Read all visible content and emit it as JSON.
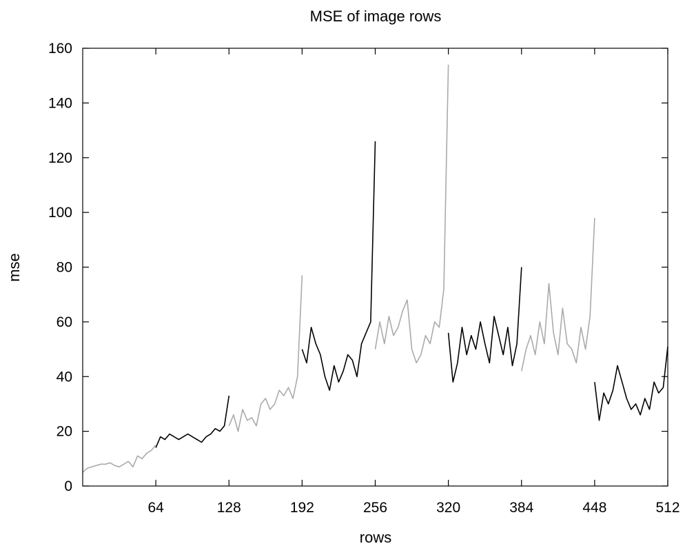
{
  "chart_data": {
    "type": "line",
    "title": "MSE of image rows",
    "xlabel": "rows",
    "ylabel": "mse",
    "xlim": [
      0,
      512
    ],
    "ylim": [
      0,
      160
    ],
    "xticks": [
      64,
      128,
      192,
      256,
      320,
      384,
      448,
      512
    ],
    "yticks": [
      0,
      20,
      40,
      60,
      80,
      100,
      120,
      140,
      160
    ],
    "grid": false,
    "legend": "none",
    "colors": {
      "gray": "#aaaaaa",
      "black": "#000000"
    },
    "series": [
      {
        "color": "#aaaaaa",
        "x": [
          0,
          4,
          8,
          12,
          16,
          20,
          24,
          28,
          32,
          36,
          40,
          44,
          48,
          52,
          56,
          60,
          64
        ],
        "y": [
          5,
          6.5,
          7,
          7.5,
          8,
          8,
          8.5,
          7.5,
          7,
          8,
          9,
          7,
          11,
          10,
          12,
          13,
          15
        ]
      },
      {
        "color": "#000000",
        "x": [
          64,
          68,
          72,
          76,
          80,
          84,
          88,
          92,
          96,
          100,
          104,
          108,
          112,
          116,
          120,
          124,
          128
        ],
        "y": [
          14,
          18,
          17,
          19,
          18,
          17,
          18,
          19,
          18,
          17,
          16,
          18,
          19,
          21,
          20,
          22,
          33
        ]
      },
      {
        "color": "#aaaaaa",
        "x": [
          128,
          132,
          136,
          140,
          144,
          148,
          152,
          156,
          160,
          164,
          168,
          172,
          176,
          180,
          184,
          188,
          192
        ],
        "y": [
          22,
          26,
          20,
          28,
          24,
          25,
          22,
          30,
          32,
          28,
          30,
          35,
          33,
          36,
          32,
          40,
          77
        ]
      },
      {
        "color": "#000000",
        "x": [
          192,
          196,
          200,
          204,
          208,
          212,
          216,
          220,
          224,
          228,
          232,
          236,
          240,
          244,
          248,
          252,
          256
        ],
        "y": [
          50,
          45,
          58,
          52,
          48,
          40,
          35,
          44,
          38,
          42,
          48,
          46,
          40,
          52,
          56,
          60,
          126
        ]
      },
      {
        "color": "#aaaaaa",
        "x": [
          256,
          260,
          264,
          268,
          272,
          276,
          280,
          284,
          288,
          292,
          296,
          300,
          304,
          308,
          312,
          316,
          320
        ],
        "y": [
          50,
          60,
          52,
          62,
          55,
          58,
          64,
          68,
          50,
          45,
          48,
          55,
          52,
          60,
          58,
          72,
          154
        ]
      },
      {
        "color": "#000000",
        "x": [
          320,
          324,
          328,
          332,
          336,
          340,
          344,
          348,
          352,
          356,
          360,
          364,
          368,
          372,
          376,
          380,
          384
        ],
        "y": [
          56,
          38,
          45,
          58,
          48,
          55,
          50,
          60,
          52,
          45,
          62,
          55,
          48,
          58,
          44,
          52,
          80
        ]
      },
      {
        "color": "#aaaaaa",
        "x": [
          384,
          388,
          392,
          396,
          400,
          404,
          408,
          412,
          416,
          420,
          424,
          428,
          432,
          436,
          440,
          444,
          448
        ],
        "y": [
          42,
          50,
          55,
          48,
          60,
          52,
          74,
          56,
          48,
          65,
          52,
          50,
          45,
          58,
          50,
          62,
          98
        ]
      },
      {
        "color": "#000000",
        "x": [
          448,
          452,
          456,
          460,
          464,
          468,
          472,
          476,
          480,
          484,
          488,
          492,
          496,
          500,
          504,
          508,
          512
        ],
        "y": [
          38,
          24,
          34,
          30,
          35,
          44,
          38,
          32,
          28,
          30,
          26,
          32,
          28,
          38,
          34,
          36,
          51
        ]
      }
    ]
  }
}
